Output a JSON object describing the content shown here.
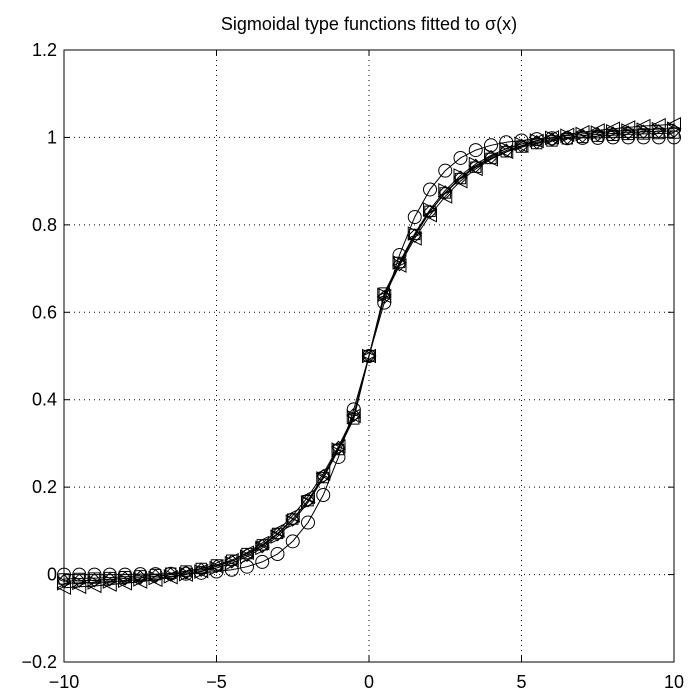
{
  "chart_data": {
    "type": "line",
    "title": "Sigmoidal type functions fitted to σ(x)",
    "xlabel": "",
    "ylabel": "",
    "xlim": [
      -10,
      10
    ],
    "ylim": [
      -0.2,
      1.2
    ],
    "grid": true,
    "x_ticks": [
      -10,
      -5,
      0,
      5,
      10
    ],
    "x_tick_labels": [
      "−10",
      "−5",
      "0",
      "5",
      "10"
    ],
    "y_ticks": [
      -0.2,
      0,
      0.2,
      0.4,
      0.6,
      0.8,
      1,
      1.2
    ],
    "y_tick_labels": [
      "−0.2",
      "0",
      "0.2",
      "0.4",
      "0.6",
      "0.8",
      "1",
      "1.2"
    ],
    "line_color": "#000000",
    "x": [
      -10,
      -9.5,
      -9,
      -8.5,
      -8,
      -7.5,
      -7,
      -6.5,
      -6,
      -5.5,
      -5,
      -4.5,
      -4,
      -3.5,
      -3,
      -2.5,
      -2,
      -1.5,
      -1,
      -0.5,
      0,
      0.5,
      1,
      1.5,
      2,
      2.5,
      3,
      3.5,
      4,
      4.5,
      5,
      5.5,
      6,
      6.5,
      7,
      7.5,
      8,
      8.5,
      9,
      9.5,
      10
    ],
    "series": [
      {
        "marker": "circle",
        "values": [
          0.0,
          0.0,
          0.0,
          0.0,
          0.0,
          0.001,
          0.001,
          0.002,
          0.002,
          0.004,
          0.007,
          0.011,
          0.018,
          0.029,
          0.047,
          0.076,
          0.119,
          0.182,
          0.269,
          0.378,
          0.5,
          0.622,
          0.731,
          0.818,
          0.881,
          0.924,
          0.953,
          0.971,
          0.982,
          0.989,
          0.993,
          0.996,
          0.998,
          0.998,
          0.999,
          0.999,
          1.0,
          1.0,
          1.0,
          1.0,
          1.0
        ]
      },
      {
        "marker": "triangle-left",
        "values": [
          -0.03,
          -0.028,
          -0.026,
          -0.023,
          -0.02,
          -0.016,
          -0.012,
          -0.006,
          0.0,
          0.008,
          0.019,
          0.033,
          0.05,
          0.072,
          0.1,
          0.135,
          0.178,
          0.231,
          0.293,
          0.363,
          0.5,
          0.637,
          0.707,
          0.769,
          0.822,
          0.865,
          0.9,
          0.928,
          0.95,
          0.967,
          0.981,
          0.992,
          1.0,
          1.006,
          1.012,
          1.016,
          1.02,
          1.023,
          1.026,
          1.028,
          1.03
        ]
      },
      {
        "marker": "triangle-right",
        "values": [
          -0.02,
          -0.019,
          -0.018,
          -0.016,
          -0.014,
          -0.011,
          -0.008,
          -0.004,
          0.001,
          0.007,
          0.015,
          0.026,
          0.041,
          0.061,
          0.087,
          0.121,
          0.165,
          0.22,
          0.286,
          0.36,
          0.5,
          0.64,
          0.714,
          0.78,
          0.835,
          0.879,
          0.913,
          0.939,
          0.959,
          0.974,
          0.985,
          0.993,
          0.999,
          1.004,
          1.008,
          1.011,
          1.014,
          1.016,
          1.018,
          1.019,
          1.02
        ]
      },
      {
        "marker": "square",
        "values": [
          -0.01,
          -0.009,
          -0.008,
          -0.007,
          -0.005,
          -0.003,
          0.0,
          0.003,
          0.008,
          0.014,
          0.022,
          0.033,
          0.048,
          0.068,
          0.094,
          0.127,
          0.169,
          0.222,
          0.286,
          0.356,
          0.5,
          0.644,
          0.714,
          0.778,
          0.831,
          0.873,
          0.906,
          0.932,
          0.952,
          0.967,
          0.978,
          0.986,
          0.992,
          0.997,
          1.0,
          1.003,
          1.005,
          1.007,
          1.008,
          1.009,
          1.01
        ]
      },
      {
        "marker": "diamond",
        "values": [
          -0.015,
          -0.014,
          -0.013,
          -0.011,
          -0.009,
          -0.007,
          -0.004,
          0.0,
          0.005,
          0.011,
          0.019,
          0.03,
          0.045,
          0.065,
          0.092,
          0.126,
          0.17,
          0.225,
          0.29,
          0.365,
          0.5,
          0.635,
          0.71,
          0.775,
          0.83,
          0.874,
          0.908,
          0.935,
          0.955,
          0.97,
          0.981,
          0.989,
          0.995,
          1.0,
          1.004,
          1.007,
          1.009,
          1.011,
          1.013,
          1.014,
          1.015
        ]
      }
    ]
  }
}
